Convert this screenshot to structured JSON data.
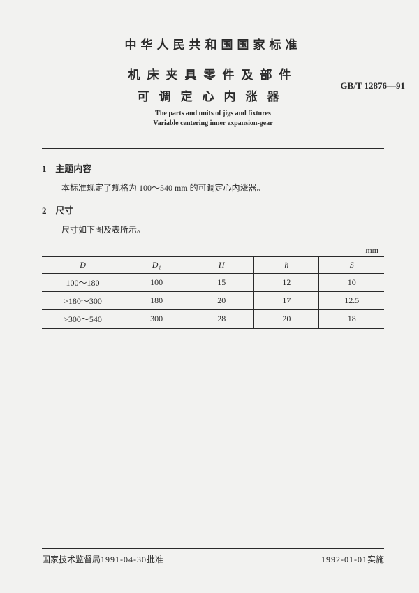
{
  "header": {
    "country": "中华人民共和国国家标准",
    "title_cn_1": "机床夹具零件及部件",
    "title_cn_2": "可调定心内涨器",
    "std_code": "GB/T 12876—91",
    "title_en_1": "The parts and units of jigs and fixtures",
    "title_en_2": "Variable centering inner expansion-gear"
  },
  "sections": {
    "s1": {
      "num": "1",
      "title": "主题内容",
      "body": "本标准规定了规格为 100～540 mm 的可调定心内涨器。"
    },
    "s2": {
      "num": "2",
      "title": "尺寸",
      "body": "尺寸如下图及表所示。"
    }
  },
  "table": {
    "unit": "mm",
    "columns": [
      "D",
      "D₁",
      "H",
      "h",
      "S"
    ],
    "rows": [
      [
        "100～180",
        "100",
        "15",
        "12",
        "10"
      ],
      [
        ">180～300",
        "180",
        "20",
        "17",
        "12.5"
      ],
      [
        ">300～540",
        "300",
        "28",
        "20",
        "18"
      ]
    ],
    "col_widths": [
      "24%",
      "19%",
      "19%",
      "19%",
      "19%"
    ]
  },
  "footer": {
    "left_org": "国家技术监督局",
    "left_date": "1991-04-30",
    "left_suffix": "批准",
    "right_date": "1992-01-01",
    "right_suffix": "实施"
  }
}
